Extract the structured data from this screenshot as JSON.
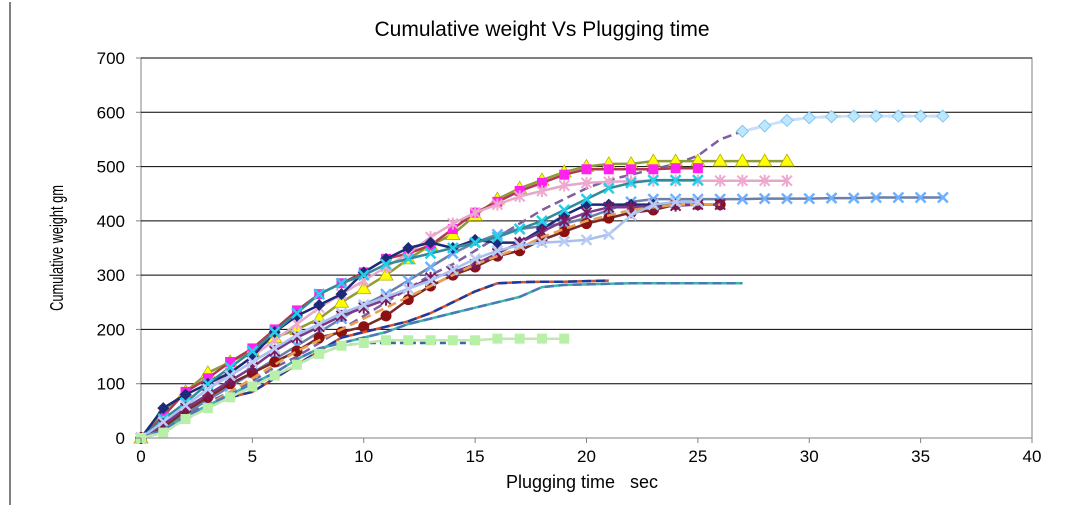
{
  "chart_data": {
    "type": "line",
    "title": "Cumulative weight Vs Plugging time",
    "xlabel": "Plugging time   sec",
    "ylabel": "Cumulative weight gm",
    "xlim": [
      0,
      40
    ],
    "ylim": [
      0,
      700
    ],
    "x_ticks": [
      0,
      5,
      10,
      15,
      20,
      25,
      30,
      35,
      40
    ],
    "y_ticks": [
      0,
      100,
      200,
      300,
      400,
      500,
      600,
      700
    ],
    "grid": "horizontal",
    "legend": "none",
    "series": [
      {
        "color": "#7f5fa0",
        "dash": "9,5",
        "marker": "none",
        "x": [
          0,
          1,
          2,
          3,
          4,
          5,
          6,
          7,
          8,
          9,
          10,
          11,
          12,
          13,
          14,
          15,
          16,
          17,
          18,
          19,
          20,
          21,
          22,
          23,
          24,
          25,
          26,
          27,
          28,
          29,
          30,
          31,
          32,
          33,
          34,
          35,
          36
        ],
        "y": [
          0,
          20,
          45,
          65,
          85,
          105,
          130,
          150,
          175,
          200,
          225,
          250,
          275,
          300,
          320,
          345,
          370,
          395,
          420,
          440,
          460,
          475,
          485,
          495,
          505,
          520,
          550,
          565,
          575,
          585,
          590,
          592,
          593,
          593,
          593,
          593,
          593
        ]
      },
      {
        "color": "#c8e0ff",
        "dash": "",
        "marker": "diamond-cyan",
        "x": [
          27,
          28,
          29,
          30,
          31,
          32,
          33,
          34,
          35,
          36
        ],
        "y": [
          565,
          575,
          585,
          590,
          592,
          593,
          593,
          593,
          593,
          593
        ]
      },
      {
        "color": "#8f9a3a",
        "dash": "",
        "marker": "triangle",
        "x": [
          0,
          1,
          2,
          3,
          4,
          5,
          6,
          7,
          8,
          9,
          10,
          11,
          12,
          13,
          14,
          15,
          16,
          17,
          18,
          19,
          20,
          21,
          22,
          23,
          24,
          25,
          26,
          27,
          28,
          29
        ],
        "y": [
          0,
          50,
          85,
          120,
          140,
          160,
          185,
          200,
          220,
          250,
          275,
          300,
          330,
          355,
          375,
          410,
          440,
          460,
          475,
          490,
          500,
          505,
          505,
          510,
          510,
          510,
          510,
          510,
          510,
          510
        ]
      },
      {
        "color": "#b03a50",
        "dash": "",
        "marker": "square",
        "x": [
          0,
          1,
          2,
          3,
          4,
          5,
          6,
          7,
          8,
          9,
          10,
          11,
          12,
          13,
          14,
          15,
          16,
          17,
          18,
          19,
          20,
          21,
          22,
          23,
          24,
          25
        ],
        "y": [
          0,
          40,
          85,
          110,
          140,
          165,
          200,
          235,
          265,
          285,
          305,
          330,
          340,
          355,
          385,
          415,
          435,
          455,
          470,
          485,
          495,
          495,
          495,
          495,
          497,
          497
        ]
      },
      {
        "color": "#e6a8c8",
        "dash": "",
        "marker": "star-pink",
        "x": [
          0,
          1,
          2,
          3,
          4,
          5,
          6,
          7,
          8,
          9,
          10,
          11,
          12,
          13,
          14,
          15,
          16,
          17,
          18,
          19,
          20,
          21,
          22,
          23,
          24,
          25,
          26,
          27,
          28,
          29
        ],
        "y": [
          0,
          30,
          60,
          90,
          120,
          150,
          180,
          210,
          240,
          265,
          290,
          315,
          340,
          370,
          395,
          415,
          430,
          445,
          455,
          465,
          470,
          472,
          473,
          474,
          474,
          474,
          474,
          474,
          474,
          474
        ]
      },
      {
        "color": "#6b7fa8",
        "dash": "",
        "marker": "cross-blue",
        "x": [
          0,
          1,
          2,
          3,
          4,
          5,
          6,
          7,
          8,
          9,
          10,
          11,
          12,
          13,
          14,
          15,
          16,
          17,
          18,
          19,
          20,
          21,
          22,
          23,
          24,
          25,
          26,
          27,
          28,
          29,
          30,
          31,
          32,
          33,
          34,
          35,
          36
        ],
        "y": [
          0,
          20,
          45,
          70,
          95,
          120,
          145,
          170,
          195,
          220,
          245,
          265,
          290,
          315,
          340,
          360,
          375,
          385,
          390,
          395,
          405,
          420,
          435,
          440,
          440,
          440,
          440,
          440,
          441,
          441,
          441,
          442,
          442,
          443,
          443,
          443,
          443
        ]
      },
      {
        "color": "#1c2a7a",
        "dash": "",
        "marker": "diamond-navy",
        "x": [
          0,
          1,
          2,
          3,
          4,
          5,
          6,
          7,
          8,
          9,
          10,
          11,
          12,
          13,
          14,
          15,
          16,
          17,
          18,
          19,
          20,
          21,
          22,
          23,
          24
        ],
        "y": [
          0,
          55,
          80,
          100,
          120,
          150,
          195,
          225,
          245,
          265,
          305,
          330,
          350,
          360,
          350,
          365,
          360,
          360,
          385,
          410,
          430,
          430,
          430,
          430,
          430
        ]
      },
      {
        "color": "#2f8a9a",
        "dash": "",
        "marker": "cross-cyan",
        "x": [
          0,
          1,
          2,
          3,
          4,
          5,
          6,
          7,
          8,
          9,
          10,
          11,
          12,
          13,
          14,
          15,
          16,
          17,
          18,
          19,
          20,
          21,
          22,
          23,
          24,
          25
        ],
        "y": [
          0,
          35,
          65,
          100,
          130,
          160,
          195,
          230,
          265,
          285,
          300,
          320,
          330,
          340,
          350,
          360,
          370,
          385,
          400,
          420,
          440,
          460,
          470,
          475,
          475,
          475
        ]
      },
      {
        "color": "#7a2a2a",
        "dash": "",
        "marker": "circle",
        "x": [
          0,
          1,
          2,
          3,
          4,
          5,
          6,
          7,
          8,
          9,
          10,
          11,
          12,
          13,
          14,
          15,
          16,
          17,
          18,
          19,
          20,
          21,
          22,
          23,
          24,
          25,
          26
        ],
        "y": [
          0,
          20,
          50,
          75,
          100,
          120,
          140,
          160,
          185,
          195,
          205,
          225,
          255,
          280,
          300,
          315,
          335,
          345,
          365,
          380,
          395,
          405,
          415,
          420,
          430,
          430,
          430
        ]
      },
      {
        "color": "#7a3a8a",
        "dash": "",
        "marker": "star-purple",
        "x": [
          0,
          1,
          2,
          3,
          4,
          5,
          6,
          7,
          8,
          9,
          10,
          11,
          12,
          13,
          14,
          15,
          16,
          17,
          18,
          19,
          20,
          21,
          22,
          23,
          24,
          25,
          26
        ],
        "y": [
          0,
          25,
          55,
          80,
          105,
          130,
          160,
          185,
          205,
          225,
          240,
          255,
          275,
          295,
          305,
          320,
          340,
          360,
          380,
          400,
          415,
          425,
          425,
          425,
          428,
          430,
          430
        ]
      },
      {
        "color": "#e8a050",
        "dash": "9,5",
        "marker": "none",
        "x": [
          0,
          1,
          2,
          3,
          4,
          5,
          6,
          7,
          8,
          9,
          10,
          11,
          12,
          13,
          14,
          15,
          16,
          17,
          18,
          19,
          20,
          21,
          22,
          23,
          24,
          25,
          26
        ],
        "y": [
          0,
          15,
          40,
          60,
          85,
          110,
          135,
          160,
          180,
          200,
          220,
          240,
          260,
          280,
          300,
          320,
          335,
          350,
          370,
          385,
          400,
          410,
          420,
          425,
          430,
          430,
          430
        ]
      },
      {
        "color": "#a8bff0",
        "dash": "",
        "marker": "cross-light",
        "x": [
          0,
          1,
          2,
          3,
          4,
          5,
          6,
          7,
          8,
          9,
          10,
          11,
          12,
          13,
          14,
          15,
          16,
          17,
          18,
          19,
          20,
          21,
          22,
          23,
          24,
          25
        ],
        "y": [
          0,
          30,
          60,
          90,
          115,
          140,
          165,
          190,
          210,
          230,
          245,
          260,
          275,
          290,
          310,
          330,
          345,
          355,
          360,
          362,
          365,
          375,
          410,
          430,
          435,
          435
        ]
      },
      {
        "color": "#d05030",
        "dash": "",
        "marker": "none",
        "x": [
          0,
          1,
          2,
          3,
          4,
          5,
          6,
          7,
          8,
          9,
          10,
          11,
          12,
          13,
          14,
          15,
          16,
          17,
          18,
          19,
          20,
          21
        ],
        "y": [
          0,
          15,
          40,
          60,
          75,
          85,
          110,
          135,
          160,
          185,
          195,
          205,
          215,
          230,
          250,
          270,
          285,
          287,
          288,
          288,
          289,
          290
        ]
      },
      {
        "color": "#1f3a9a",
        "dash": "9,5",
        "marker": "none",
        "x": [
          0,
          1,
          2,
          3,
          4,
          5,
          6,
          7,
          8,
          9,
          10,
          11,
          12,
          13,
          14,
          15,
          16,
          17,
          18,
          19,
          20,
          21
        ],
        "y": [
          0,
          15,
          40,
          60,
          75,
          85,
          110,
          135,
          160,
          185,
          195,
          205,
          215,
          230,
          250,
          270,
          285,
          287,
          288,
          288,
          289,
          290
        ]
      },
      {
        "color": "#3cb8a8",
        "dash": "",
        "marker": "none",
        "x": [
          0,
          1,
          2,
          3,
          4,
          5,
          6,
          7,
          8,
          9,
          10,
          11,
          12,
          13,
          14,
          15,
          16,
          17,
          18,
          19,
          20,
          21,
          22,
          23,
          24,
          25,
          26,
          27
        ],
        "y": [
          0,
          15,
          40,
          60,
          80,
          100,
          120,
          145,
          165,
          175,
          185,
          195,
          210,
          220,
          230,
          240,
          250,
          260,
          278,
          282,
          283,
          284,
          285,
          285,
          285,
          285,
          285,
          285
        ]
      },
      {
        "color": "#4a78b8",
        "dash": "9,5",
        "marker": "none",
        "x": [
          0,
          1,
          2,
          3,
          4,
          5,
          6,
          7,
          8,
          9,
          10,
          11,
          12,
          13,
          14,
          15,
          16,
          17,
          18,
          19,
          20,
          21,
          22,
          23,
          24,
          25,
          26,
          27
        ],
        "y": [
          0,
          15,
          40,
          60,
          80,
          100,
          120,
          145,
          165,
          175,
          185,
          195,
          210,
          220,
          230,
          240,
          250,
          260,
          278,
          282,
          283,
          284,
          285,
          285,
          285,
          285,
          285,
          285
        ]
      },
      {
        "color": "#3a6a9a",
        "dash": "6,4",
        "marker": "none",
        "x": [
          0,
          1,
          2,
          3,
          4,
          5,
          6,
          7,
          8,
          9,
          10,
          11,
          12,
          13,
          14,
          15
        ],
        "y": [
          0,
          10,
          35,
          55,
          75,
          95,
          115,
          135,
          155,
          170,
          175,
          175,
          175,
          175,
          175,
          175
        ]
      },
      {
        "color": "#bfe8b0",
        "dash": "",
        "marker": "square-green",
        "x": [
          0,
          1,
          2,
          3,
          4,
          5,
          6,
          7,
          8,
          9,
          10,
          11,
          12,
          13,
          14,
          15,
          16,
          17,
          18,
          19
        ],
        "y": [
          0,
          10,
          35,
          55,
          75,
          95,
          115,
          135,
          155,
          170,
          175,
          180,
          180,
          180,
          180,
          180,
          183,
          183,
          183,
          183
        ]
      }
    ]
  }
}
